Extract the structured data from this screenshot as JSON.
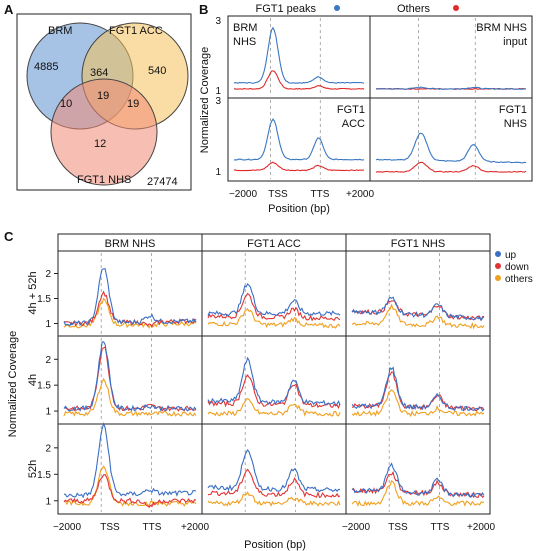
{
  "panel_labels": {
    "a": "A",
    "b": "B",
    "c": "C"
  },
  "venn": {
    "set_labels": {
      "brm": "BRM",
      "acc": "FGT1 ACC",
      "nhs": "FGT1 NHS"
    },
    "colors": {
      "brm": "#6b9bd3",
      "acc": "#f6c15a",
      "nhs": "#f08a76"
    },
    "counts": {
      "brm_only": "4885",
      "acc_only": "540",
      "nhs_only": "12",
      "brm_acc": "364",
      "brm_nhs": "10",
      "acc_nhs": "19",
      "all": "19",
      "outside": "27474"
    }
  },
  "panel_b": {
    "legend": [
      {
        "label": "FGT1 peaks",
        "color": "#3a78c2"
      },
      {
        "label": "Others",
        "color": "#e02a2a"
      }
    ],
    "ylabel": "Normalized Coverage",
    "xlabel": "Position (bp)",
    "xticks": [
      "−2000",
      "TSS",
      "TTS",
      "+2000"
    ],
    "yticks_top": [
      "3",
      "1"
    ],
    "yticks_bottom": [
      "3",
      "1"
    ],
    "panels": [
      {
        "title1": "BRM",
        "title2": "NHS",
        "align": "left"
      },
      {
        "title1": "BRM NHS",
        "title2": "input",
        "align": "right"
      },
      {
        "title1": "FGT1",
        "title2": "ACC",
        "align": "right"
      },
      {
        "title1": "FGT1",
        "title2": "NHS",
        "align": "right"
      }
    ]
  },
  "panel_c": {
    "col_titles": [
      "BRM NHS",
      "FGT1 ACC",
      "FGT1 NHS"
    ],
    "row_titles": [
      "4h + 52h",
      "4h",
      "52h"
    ],
    "yticks": [
      "2",
      "1.5",
      "1"
    ],
    "ylabel": "Normalized Coverage",
    "xlabel": "Position (bp)",
    "xticks_left": [
      "−2000",
      "TSS",
      "TTS",
      "+2000"
    ],
    "xticks_right": [
      "−2000",
      "TSS",
      "TTS",
      "+2000"
    ],
    "legend": [
      {
        "label": "up",
        "color": "#3b6fc4"
      },
      {
        "label": "down",
        "color": "#e03535"
      },
      {
        "label": "others",
        "color": "#f0a020"
      }
    ]
  },
  "chart_data": [
    {
      "type": "line",
      "title": "",
      "xlabel": "Position (bp)",
      "ylabel": "Normalized Coverage",
      "x": [
        "−2000",
        "TSS",
        "TTS",
        "+2000"
      ],
      "panels": {
        "BRM NHS": {
          "FGT1 peaks": [
            1.1,
            2.9,
            1.3,
            1.1
          ],
          "Others": [
            0.9,
            1.5,
            1.0,
            0.9
          ]
        },
        "BRM NHS input": {
          "FGT1 peaks": [
            0.9,
            0.95,
            0.95,
            0.9
          ],
          "Others": [
            0.9,
            0.9,
            0.9,
            0.9
          ]
        },
        "FGT1 ACC": {
          "FGT1 peaks": [
            1.3,
            2.6,
            2.0,
            1.3
          ],
          "Others": [
            0.95,
            1.2,
            1.1,
            0.95
          ]
        },
        "FGT1 NHS": {
          "FGT1 peaks": [
            1.3,
            2.2,
            1.8,
            1.2
          ],
          "Others": [
            0.9,
            1.2,
            1.1,
            0.9
          ]
        }
      }
    },
    {
      "type": "line",
      "title": "",
      "xlabel": "Position (bp)",
      "ylabel": "Normalized Coverage",
      "x": [
        "−2000",
        "TSS",
        "TTS",
        "+2000"
      ],
      "panels": {
        "4h + 52h / BRM NHS": {
          "up": [
            1.0,
            2.1,
            1.15,
            1.05
          ],
          "down": [
            1.0,
            1.6,
            0.95,
            1.05
          ],
          "others": [
            0.95,
            1.45,
            0.95,
            1.0
          ]
        },
        "4h + 52h / FGT1 ACC": {
          "up": [
            1.2,
            1.8,
            1.45,
            1.2
          ],
          "down": [
            1.15,
            1.6,
            1.3,
            1.1
          ],
          "others": [
            1.0,
            1.3,
            1.1,
            0.95
          ]
        },
        "4h + 52h / FGT1 NHS": {
          "up": [
            1.25,
            1.55,
            1.4,
            1.1
          ],
          "down": [
            1.25,
            1.5,
            1.4,
            1.1
          ],
          "others": [
            1.0,
            1.35,
            1.15,
            0.95
          ]
        },
        "4h / BRM NHS": {
          "up": [
            1.05,
            2.35,
            1.1,
            1.05
          ],
          "down": [
            1.05,
            2.25,
            1.1,
            1.05
          ],
          "others": [
            0.95,
            1.6,
            0.95,
            0.95
          ]
        },
        "4h / FGT1 ACC": {
          "up": [
            1.2,
            2.0,
            1.6,
            1.15
          ],
          "down": [
            1.15,
            1.7,
            1.55,
            1.1
          ],
          "others": [
            0.95,
            1.2,
            1.15,
            0.95
          ]
        },
        "4h / FGT1 NHS": {
          "up": [
            1.1,
            1.85,
            1.3,
            1.05
          ],
          "down": [
            1.1,
            1.75,
            1.3,
            1.05
          ],
          "others": [
            0.95,
            1.4,
            1.05,
            0.95
          ]
        },
        "52h / BRM NHS": {
          "up": [
            1.1,
            2.4,
            1.2,
            1.15
          ],
          "down": [
            1.0,
            1.5,
            0.9,
            1.0
          ],
          "others": [
            0.95,
            1.65,
            0.95,
            0.95
          ]
        },
        "52h / FGT1 ACC": {
          "up": [
            1.25,
            2.0,
            1.6,
            1.2
          ],
          "down": [
            1.15,
            1.6,
            1.4,
            1.1
          ],
          "others": [
            0.95,
            1.15,
            1.05,
            0.95
          ]
        },
        "52h / FGT1 NHS": {
          "up": [
            1.2,
            1.7,
            1.4,
            1.1
          ],
          "down": [
            1.2,
            1.55,
            1.35,
            1.1
          ],
          "others": [
            0.95,
            1.35,
            1.05,
            0.95
          ]
        }
      }
    }
  ]
}
